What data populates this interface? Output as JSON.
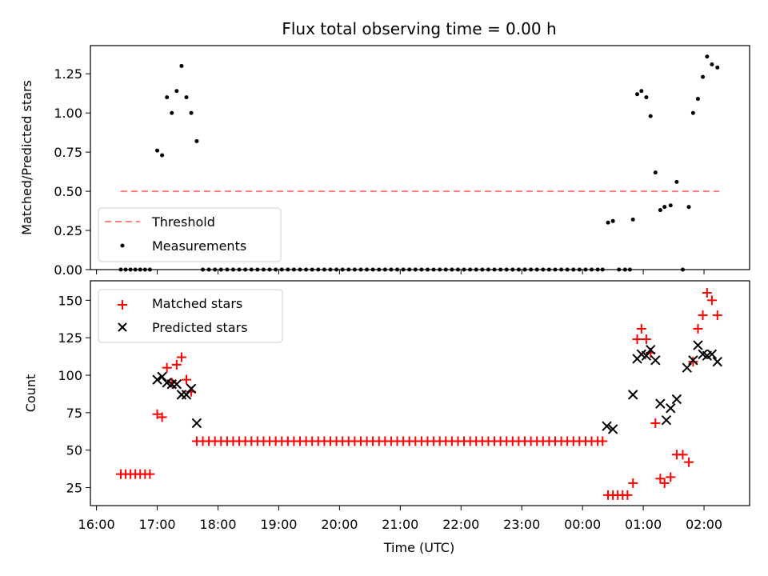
{
  "chart_data": [
    {
      "type": "scatter",
      "title": "Flux total observing time = 0.00 h",
      "xlabel": "",
      "ylabel": "Matched/Predicted stars",
      "xlim_hours": [
        15.9,
        26.75
      ],
      "ylim": [
        0,
        1.43
      ],
      "yticks": [
        0.0,
        0.25,
        0.5,
        0.75,
        1.0,
        1.25
      ],
      "ytick_labels": [
        "0.00",
        "0.25",
        "0.50",
        "0.75",
        "1.00",
        "1.25"
      ],
      "legend_position": "lower-left",
      "threshold": {
        "name": "Threshold",
        "value": 0.5,
        "x_range_hours": [
          16.4,
          26.25
        ],
        "color": "#ff7f7f",
        "style": "dashed"
      },
      "series": [
        {
          "name": "Measurements",
          "color": "#000000",
          "marker": "dot",
          "points": [
            [
              16.4,
              0
            ],
            [
              16.48,
              0
            ],
            [
              16.56,
              0
            ],
            [
              16.64,
              0
            ],
            [
              16.72,
              0
            ],
            [
              16.8,
              0
            ],
            [
              16.88,
              0
            ],
            [
              17.0,
              0.76
            ],
            [
              17.08,
              0.73
            ],
            [
              17.16,
              1.1
            ],
            [
              17.24,
              1.0
            ],
            [
              17.32,
              1.14
            ],
            [
              17.4,
              1.3
            ],
            [
              17.48,
              1.1
            ],
            [
              17.56,
              1.0
            ],
            [
              17.65,
              0.82
            ],
            [
              17.75,
              0
            ],
            [
              17.85,
              0
            ],
            [
              17.95,
              0
            ],
            [
              18.05,
              0
            ],
            [
              18.15,
              0
            ],
            [
              18.25,
              0
            ],
            [
              18.35,
              0
            ],
            [
              18.45,
              0
            ],
            [
              18.55,
              0
            ],
            [
              18.65,
              0
            ],
            [
              18.75,
              0
            ],
            [
              18.85,
              0
            ],
            [
              18.95,
              0
            ],
            [
              19.05,
              0
            ],
            [
              19.15,
              0
            ],
            [
              19.25,
              0
            ],
            [
              19.35,
              0
            ],
            [
              19.45,
              0
            ],
            [
              19.55,
              0
            ],
            [
              19.65,
              0
            ],
            [
              19.75,
              0
            ],
            [
              19.85,
              0
            ],
            [
              19.95,
              0
            ],
            [
              20.05,
              0
            ],
            [
              20.15,
              0
            ],
            [
              20.25,
              0
            ],
            [
              20.35,
              0
            ],
            [
              20.45,
              0
            ],
            [
              20.55,
              0
            ],
            [
              20.65,
              0
            ],
            [
              20.75,
              0
            ],
            [
              20.85,
              0
            ],
            [
              20.95,
              0
            ],
            [
              21.05,
              0
            ],
            [
              21.15,
              0
            ],
            [
              21.25,
              0
            ],
            [
              21.35,
              0
            ],
            [
              21.45,
              0
            ],
            [
              21.55,
              0
            ],
            [
              21.65,
              0
            ],
            [
              21.75,
              0
            ],
            [
              21.85,
              0
            ],
            [
              21.95,
              0
            ],
            [
              22.05,
              0
            ],
            [
              22.15,
              0
            ],
            [
              22.25,
              0
            ],
            [
              22.35,
              0
            ],
            [
              22.45,
              0
            ],
            [
              22.55,
              0
            ],
            [
              22.65,
              0
            ],
            [
              22.75,
              0
            ],
            [
              22.85,
              0
            ],
            [
              22.95,
              0
            ],
            [
              23.05,
              0
            ],
            [
              23.15,
              0
            ],
            [
              23.25,
              0
            ],
            [
              23.35,
              0
            ],
            [
              23.45,
              0
            ],
            [
              23.55,
              0
            ],
            [
              23.65,
              0
            ],
            [
              23.75,
              0
            ],
            [
              23.85,
              0
            ],
            [
              23.95,
              0
            ],
            [
              24.05,
              0
            ],
            [
              24.15,
              0
            ],
            [
              24.25,
              0
            ],
            [
              24.33,
              0
            ],
            [
              24.42,
              0.3
            ],
            [
              24.5,
              0.31
            ],
            [
              24.6,
              0
            ],
            [
              24.7,
              0
            ],
            [
              24.78,
              0
            ],
            [
              24.83,
              0.32
            ],
            [
              24.9,
              1.12
            ],
            [
              24.97,
              1.14
            ],
            [
              25.05,
              1.1
            ],
            [
              25.12,
              0.98
            ],
            [
              25.2,
              0.62
            ],
            [
              25.28,
              0.38
            ],
            [
              25.35,
              0.4
            ],
            [
              25.45,
              0.41
            ],
            [
              25.55,
              0.56
            ],
            [
              25.65,
              0
            ],
            [
              25.75,
              0.4
            ],
            [
              25.82,
              1.0
            ],
            [
              25.9,
              1.09
            ],
            [
              25.98,
              1.23
            ],
            [
              26.05,
              1.36
            ],
            [
              26.13,
              1.31
            ],
            [
              26.22,
              1.29
            ]
          ]
        }
      ]
    },
    {
      "type": "scatter",
      "title": "",
      "xlabel": "Time (UTC)",
      "ylabel": "Count",
      "xlim_hours": [
        15.9,
        26.75
      ],
      "ylim": [
        13,
        163
      ],
      "yticks": [
        25,
        50,
        75,
        100,
        125,
        150
      ],
      "ytick_labels": [
        "25",
        "50",
        "75",
        "100",
        "125",
        "150"
      ],
      "xticks_hours": [
        16,
        17,
        18,
        19,
        20,
        21,
        22,
        23,
        24,
        25,
        26
      ],
      "xtick_labels": [
        "16:00",
        "17:00",
        "18:00",
        "19:00",
        "20:00",
        "21:00",
        "22:00",
        "23:00",
        "00:00",
        "01:00",
        "02:00"
      ],
      "legend_position": "top-left",
      "series": [
        {
          "name": "Matched stars",
          "color": "#ff0000",
          "marker": "plus",
          "points": [
            [
              16.4,
              34
            ],
            [
              16.48,
              34
            ],
            [
              16.56,
              34
            ],
            [
              16.64,
              34
            ],
            [
              16.72,
              34
            ],
            [
              16.8,
              34
            ],
            [
              16.88,
              34
            ],
            [
              17.0,
              74
            ],
            [
              17.08,
              72
            ],
            [
              17.16,
              105
            ],
            [
              17.24,
              95
            ],
            [
              17.32,
              107
            ],
            [
              17.4,
              112
            ],
            [
              17.48,
              97
            ],
            [
              17.56,
              89
            ],
            [
              17.65,
              56
            ],
            [
              17.75,
              56
            ],
            [
              17.85,
              56
            ],
            [
              17.95,
              56
            ],
            [
              18.05,
              56
            ],
            [
              18.15,
              56
            ],
            [
              18.25,
              56
            ],
            [
              18.35,
              56
            ],
            [
              18.45,
              56
            ],
            [
              18.55,
              56
            ],
            [
              18.65,
              56
            ],
            [
              18.75,
              56
            ],
            [
              18.85,
              56
            ],
            [
              18.95,
              56
            ],
            [
              19.05,
              56
            ],
            [
              19.15,
              56
            ],
            [
              19.25,
              56
            ],
            [
              19.35,
              56
            ],
            [
              19.45,
              56
            ],
            [
              19.55,
              56
            ],
            [
              19.65,
              56
            ],
            [
              19.75,
              56
            ],
            [
              19.85,
              56
            ],
            [
              19.95,
              56
            ],
            [
              20.05,
              56
            ],
            [
              20.15,
              56
            ],
            [
              20.25,
              56
            ],
            [
              20.35,
              56
            ],
            [
              20.45,
              56
            ],
            [
              20.55,
              56
            ],
            [
              20.65,
              56
            ],
            [
              20.75,
              56
            ],
            [
              20.85,
              56
            ],
            [
              20.95,
              56
            ],
            [
              21.05,
              56
            ],
            [
              21.15,
              56
            ],
            [
              21.25,
              56
            ],
            [
              21.35,
              56
            ],
            [
              21.45,
              56
            ],
            [
              21.55,
              56
            ],
            [
              21.65,
              56
            ],
            [
              21.75,
              56
            ],
            [
              21.85,
              56
            ],
            [
              21.95,
              56
            ],
            [
              22.05,
              56
            ],
            [
              22.15,
              56
            ],
            [
              22.25,
              56
            ],
            [
              22.35,
              56
            ],
            [
              22.45,
              56
            ],
            [
              22.55,
              56
            ],
            [
              22.65,
              56
            ],
            [
              22.75,
              56
            ],
            [
              22.85,
              56
            ],
            [
              22.95,
              56
            ],
            [
              23.05,
              56
            ],
            [
              23.15,
              56
            ],
            [
              23.25,
              56
            ],
            [
              23.35,
              56
            ],
            [
              23.45,
              56
            ],
            [
              23.55,
              56
            ],
            [
              23.65,
              56
            ],
            [
              23.75,
              56
            ],
            [
              23.85,
              56
            ],
            [
              23.95,
              56
            ],
            [
              24.05,
              56
            ],
            [
              24.15,
              56
            ],
            [
              24.25,
              56
            ],
            [
              24.33,
              56
            ],
            [
              24.42,
              20
            ],
            [
              24.5,
              20
            ],
            [
              24.58,
              20
            ],
            [
              24.66,
              20
            ],
            [
              24.74,
              20
            ],
            [
              24.83,
              28
            ],
            [
              24.9,
              124
            ],
            [
              24.97,
              131
            ],
            [
              25.05,
              124
            ],
            [
              25.12,
              115
            ],
            [
              25.2,
              68
            ],
            [
              25.28,
              31
            ],
            [
              25.35,
              28
            ],
            [
              25.45,
              32
            ],
            [
              25.55,
              47
            ],
            [
              25.65,
              47
            ],
            [
              25.75,
              42
            ],
            [
              25.82,
              109
            ],
            [
              25.9,
              131
            ],
            [
              25.98,
              140
            ],
            [
              26.05,
              155
            ],
            [
              26.13,
              150
            ],
            [
              26.22,
              140
            ]
          ]
        },
        {
          "name": "Predicted stars",
          "color": "#000000",
          "marker": "x",
          "points": [
            [
              17.0,
              97
            ],
            [
              17.08,
              99
            ],
            [
              17.16,
              95
            ],
            [
              17.24,
              94
            ],
            [
              17.32,
              94
            ],
            [
              17.4,
              87
            ],
            [
              17.48,
              87
            ],
            [
              17.56,
              91
            ],
            [
              17.65,
              68
            ],
            [
              24.4,
              66
            ],
            [
              24.5,
              64
            ],
            [
              24.83,
              87
            ],
            [
              24.9,
              111
            ],
            [
              24.97,
              114
            ],
            [
              25.05,
              113
            ],
            [
              25.12,
              117
            ],
            [
              25.2,
              110
            ],
            [
              25.28,
              81
            ],
            [
              25.38,
              70
            ],
            [
              25.45,
              78
            ],
            [
              25.55,
              84
            ],
            [
              25.72,
              105
            ],
            [
              25.82,
              110
            ],
            [
              25.9,
              120
            ],
            [
              25.98,
              114
            ],
            [
              26.05,
              113
            ],
            [
              26.13,
              114
            ],
            [
              26.22,
              109
            ]
          ]
        }
      ]
    }
  ]
}
